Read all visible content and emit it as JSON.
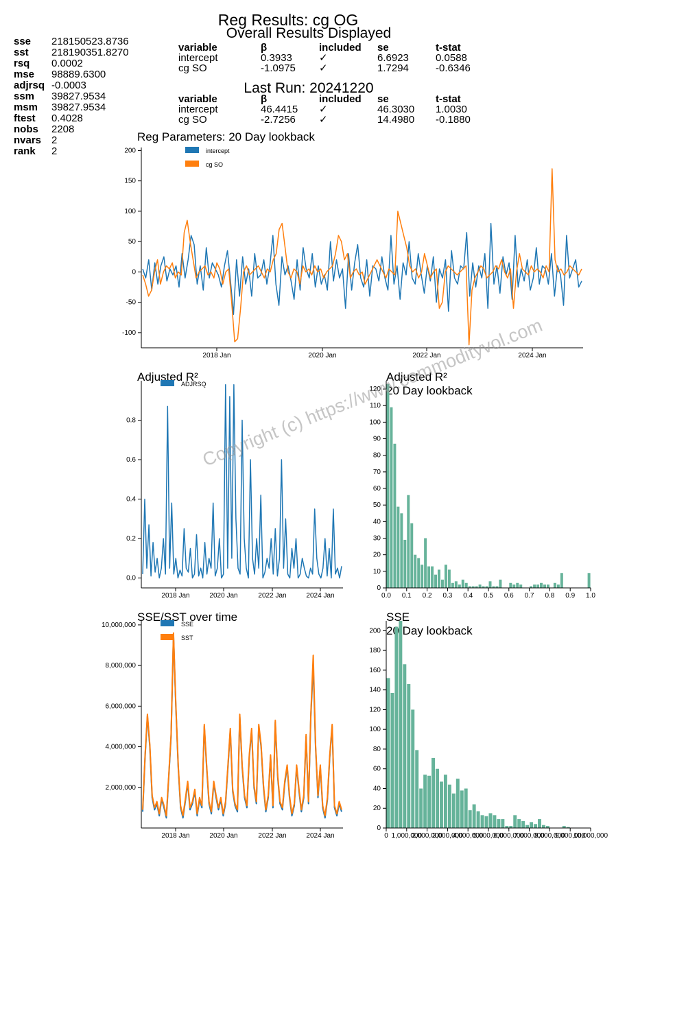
{
  "stats": [
    {
      "key": "sse",
      "value": "218150523.8736"
    },
    {
      "key": "sst",
      "value": "218190351.8270"
    },
    {
      "key": "rsq",
      "value": "0.0002"
    },
    {
      "key": "mse",
      "value": "98889.6300"
    },
    {
      "key": "adjrsq",
      "value": "-0.0003"
    },
    {
      "key": "ssm",
      "value": "39827.9534"
    },
    {
      "key": "msm",
      "value": "39827.9534"
    },
    {
      "key": "ftest",
      "value": "0.4028"
    },
    {
      "key": "nobs",
      "value": "2208"
    },
    {
      "key": "nvars",
      "value": "2"
    },
    {
      "key": "rank",
      "value": "2"
    }
  ],
  "header": {
    "title": "Reg Results: cg OG",
    "overall_title": "Overall Results Displayed",
    "last_run_title": "Last Run: 20241220"
  },
  "table_headers": [
    "variable",
    "β",
    "included",
    "se",
    "t-stat"
  ],
  "overall_rows": [
    [
      "intercept",
      "0.3933",
      "✓",
      "6.6923",
      "0.0588"
    ],
    [
      "cg SO",
      "-1.0975",
      "✓",
      "1.7294",
      "-0.6346"
    ]
  ],
  "last_run_rows": [
    [
      "intercept",
      "46.4415",
      "✓",
      "46.3030",
      "1.0030"
    ],
    [
      "cg SO",
      "-2.7256",
      "✓",
      "14.4980",
      "-0.1880"
    ]
  ],
  "watermark": "Copyright (c) https://www.commodityvol.com",
  "chart_data": [
    {
      "id": "params",
      "type": "line",
      "title": "Reg Parameters: 20 Day lookback",
      "x_ticks": [
        "2018 Jan",
        "2020 Jan",
        "2022 Jan",
        "2024 Jan"
      ],
      "y_ticks": [
        "200",
        "150",
        "100",
        "50",
        "0",
        "-50",
        "-100"
      ],
      "ylim": [
        -125,
        205
      ],
      "xlim": [
        "2016-04",
        "2024-12"
      ],
      "legend": "top-left",
      "series": [
        {
          "name": "intercept",
          "color": "#1f77b4",
          "values": [
            5,
            -10,
            20,
            -30,
            15,
            -20,
            10,
            25,
            -15,
            5,
            -5,
            10,
            -25,
            30,
            -10,
            20,
            60,
            45,
            -20,
            10,
            -30,
            40,
            -10,
            15,
            5,
            -5,
            -25,
            10,
            35,
            -15,
            -70,
            20,
            -40,
            25,
            -20,
            5,
            -40,
            30,
            -10,
            -5,
            20,
            -20,
            10,
            60,
            -20,
            -55,
            25,
            -5,
            10,
            -15,
            -45,
            20,
            -30,
            40,
            5,
            -10,
            30,
            -25,
            10,
            -20,
            -5,
            -30,
            50,
            -15,
            20,
            -10,
            5,
            -60,
            30,
            -30,
            15,
            45,
            -10,
            -25,
            20,
            -40,
            10,
            5,
            -15,
            25,
            -10,
            -30,
            60,
            -20,
            10,
            -45,
            15,
            -5,
            50,
            -10,
            -20,
            30,
            -5,
            -35,
            10,
            -15,
            25,
            -50,
            5,
            -10,
            20,
            -65,
            35,
            -10,
            -20,
            10,
            5,
            65,
            -40,
            15,
            -25,
            10,
            -10,
            30,
            -60,
            80,
            -20,
            10,
            -35,
            25,
            -5,
            15,
            -45,
            60,
            -25,
            5,
            -15,
            20,
            -30,
            -10,
            40,
            -20,
            10,
            5,
            -20,
            30,
            -40,
            10,
            -5,
            -55,
            60,
            -10,
            5,
            20,
            -25,
            -15
          ]
        },
        {
          "name": "cg SO",
          "color": "#ff7f0e",
          "values": [
            -5,
            -20,
            -40,
            -30,
            0,
            20,
            -20,
            0,
            10,
            5,
            15,
            -10,
            0,
            -5,
            65,
            85,
            50,
            20,
            -10,
            0,
            5,
            10,
            -5,
            0,
            -10,
            15,
            5,
            -20,
            0,
            5,
            -50,
            -115,
            -110,
            -60,
            0,
            10,
            -5,
            0,
            5,
            10,
            0,
            -10,
            5,
            0,
            20,
            30,
            70,
            80,
            40,
            0,
            -10,
            5,
            0,
            -20,
            10,
            0,
            5,
            -5,
            10,
            0,
            5,
            -10,
            0,
            5,
            10,
            30,
            60,
            50,
            20,
            30,
            -10,
            0,
            5,
            -5,
            0,
            -20,
            -10,
            0,
            10,
            20,
            10,
            0,
            -10,
            5,
            0,
            -5,
            100,
            80,
            60,
            40,
            10,
            0,
            5,
            -10,
            0,
            30,
            10,
            -10,
            0,
            5,
            -60,
            -50,
            0,
            10,
            5,
            0,
            -5,
            0,
            5,
            10,
            -120,
            -30,
            -10,
            0,
            10,
            5,
            -10,
            -5,
            0,
            10,
            5,
            20,
            0,
            -10,
            5,
            -60,
            0,
            30,
            5,
            0,
            -5,
            10,
            0,
            5,
            0,
            -10,
            10,
            0,
            170,
            20,
            0,
            5,
            -5,
            0,
            10,
            5,
            0,
            -5,
            5
          ]
        }
      ]
    },
    {
      "id": "adjrsq",
      "type": "line",
      "title": "Adjusted R²",
      "x_ticks": [
        "2018 Jan",
        "2020 Jan",
        "2022 Jan",
        "2024 Jan"
      ],
      "y_ticks": [
        "0.8",
        "0.6",
        "0.4",
        "0.2",
        "0.0"
      ],
      "ylim": [
        -0.05,
        1.0
      ],
      "legend": "top-left",
      "series": [
        {
          "name": "ADJRSQ",
          "color": "#1f77b4",
          "values": [
            0.02,
            0.4,
            0.05,
            0.27,
            0.01,
            0.18,
            0.03,
            0.1,
            0.0,
            0.05,
            0.2,
            0.02,
            0.87,
            0.05,
            0.38,
            0.02,
            0.1,
            0.0,
            0.04,
            0.01,
            0.25,
            0.05,
            0.03,
            0.15,
            0.0,
            0.02,
            0.22,
            0.01,
            0.05,
            0.0,
            0.18,
            0.02,
            0.1,
            0.05,
            0.38,
            0.01,
            0.05,
            0.2,
            0.0,
            0.02,
            0.98,
            0.05,
            0.92,
            0.1,
            0.98,
            0.3,
            0.05,
            0.02,
            0.8,
            0.2,
            0.05,
            0.0,
            0.6,
            0.1,
            0.02,
            0.2,
            0.05,
            0.42,
            0.0,
            0.03,
            0.1,
            0.05,
            0.2,
            0.02,
            0.25,
            0.01,
            0.1,
            0.6,
            0.05,
            0.3,
            0.02,
            0.0,
            0.15,
            0.05,
            0.2,
            0.0,
            0.02,
            0.1,
            0.05,
            0.01,
            0.0,
            0.05,
            0.02,
            0.35,
            0.1,
            0.02,
            0.0,
            0.05,
            0.2,
            0.01,
            0.15,
            0.0,
            0.35,
            0.02,
            0.05,
            0.0,
            0.06
          ]
        }
      ]
    },
    {
      "id": "adjrsq_hist",
      "type": "bar",
      "title": "Adjusted R²",
      "subtitle": "20 Day lookback",
      "x_ticks": [
        "0.0",
        "0.1",
        "0.2",
        "0.3",
        "0.4",
        "0.5",
        "0.6",
        "0.7",
        "0.8",
        "0.9",
        "1.0"
      ],
      "y_ticks": [
        "0",
        "10",
        "20",
        "30",
        "40",
        "50",
        "60",
        "70",
        "80",
        "90",
        "100",
        "110",
        "120"
      ],
      "xlim": [
        0,
        1
      ],
      "ylim": [
        0,
        125
      ],
      "bin_width": 0.01667,
      "color": "#66b39a",
      "values": [
        123,
        109,
        87,
        49,
        45,
        29,
        56,
        39,
        20,
        18,
        14,
        30,
        13,
        13,
        8,
        11,
        5,
        14,
        11,
        3,
        4,
        2,
        5,
        3,
        1,
        1,
        1,
        2,
        1,
        1,
        4,
        1,
        1,
        5,
        0,
        0,
        3,
        2,
        3,
        2,
        0,
        0,
        1,
        2,
        2,
        3,
        2,
        2,
        0,
        3,
        2,
        9,
        0,
        0,
        0,
        0,
        0,
        0,
        0,
        9
      ]
    },
    {
      "id": "sse_sst",
      "type": "line",
      "title": "SSE/SST over time",
      "x_ticks": [
        "2018 Jan",
        "2020 Jan",
        "2022 Jan",
        "2024 Jan"
      ],
      "y_ticks": [
        "10,000,000",
        "8,000,000",
        "6,000,000",
        "4,000,000",
        "2,000,000"
      ],
      "ylim": [
        0,
        10200000
      ],
      "legend": "top-left",
      "series": [
        {
          "name": "SSE",
          "color": "#1f77b4",
          "values": [
            800000,
            3500000,
            5500000,
            4000000,
            1500000,
            900000,
            1200000,
            600000,
            1400000,
            1000000,
            500000,
            2500000,
            4500000,
            9500000,
            6000000,
            3000000,
            1000000,
            500000,
            1300000,
            2200000,
            900000,
            1200000,
            1800000,
            600000,
            1400000,
            1000000,
            5000000,
            3000000,
            1200000,
            700000,
            2200000,
            1500000,
            900000,
            1400000,
            600000,
            1200000,
            3000000,
            4800000,
            1800000,
            1100000,
            800000,
            5500000,
            3000000,
            1500000,
            1000000,
            3500000,
            4800000,
            2000000,
            1200000,
            5000000,
            4000000,
            2000000,
            800000,
            1500000,
            3500000,
            1000000,
            5200000,
            2500000,
            1200000,
            900000,
            2200000,
            3000000,
            1500000,
            600000,
            1100000,
            3000000,
            1800000,
            800000,
            1500000,
            4500000,
            1200000,
            5500000,
            8000000,
            4000000,
            1500000,
            3000000,
            1000000,
            500000,
            1400000,
            3500000,
            5000000,
            1000000,
            600000,
            1200000,
            800000
          ]
        },
        {
          "name": "SST",
          "color": "#ff7f0e",
          "values": [
            900000,
            3600000,
            5600000,
            4100000,
            1600000,
            1000000,
            1300000,
            700000,
            1500000,
            1100000,
            600000,
            2600000,
            4600000,
            9600000,
            6100000,
            3100000,
            1100000,
            600000,
            1400000,
            2300000,
            1000000,
            1300000,
            1900000,
            700000,
            1500000,
            1100000,
            5100000,
            3100000,
            1300000,
            800000,
            2300000,
            1600000,
            1000000,
            1500000,
            700000,
            1300000,
            3100000,
            4900000,
            1900000,
            1200000,
            900000,
            5600000,
            3100000,
            1600000,
            1100000,
            3600000,
            4900000,
            2100000,
            1300000,
            5100000,
            4100000,
            2100000,
            900000,
            1600000,
            3600000,
            1100000,
            5300000,
            2600000,
            1300000,
            1000000,
            2300000,
            3100000,
            1600000,
            700000,
            1200000,
            3100000,
            1900000,
            900000,
            1600000,
            4600000,
            1300000,
            5600000,
            8500000,
            4100000,
            1600000,
            3100000,
            1100000,
            600000,
            1500000,
            3600000,
            5100000,
            1100000,
            700000,
            1300000,
            900000
          ]
        }
      ]
    },
    {
      "id": "sse_hist",
      "type": "bar",
      "title": "SSE",
      "subtitle": "20 Day lookback",
      "x_ticks": [
        "0",
        "1,000,000",
        "2,000,000",
        "3,000,000",
        "4,000,000",
        "5,000,000",
        "6,000,000",
        "7,000,000",
        "8,000,000",
        "9,000,000",
        "10,000,000"
      ],
      "y_ticks": [
        "0",
        "20",
        "40",
        "60",
        "80",
        "100",
        "120",
        "140",
        "160",
        "180",
        "200"
      ],
      "xlim": [
        0,
        10000000
      ],
      "ylim": [
        0,
        210
      ],
      "bin_width": 200000,
      "color": "#66b39a",
      "values": [
        152,
        137,
        204,
        210,
        166,
        146,
        120,
        79,
        40,
        54,
        53,
        71,
        60,
        47,
        54,
        44,
        35,
        50,
        38,
        40,
        18,
        24,
        17,
        13,
        12,
        15,
        13,
        9,
        9,
        2,
        2,
        13,
        9,
        7,
        3,
        6,
        4,
        9,
        3,
        2,
        0,
        0,
        0,
        2,
        1,
        0,
        0,
        0,
        0,
        0
      ]
    }
  ]
}
